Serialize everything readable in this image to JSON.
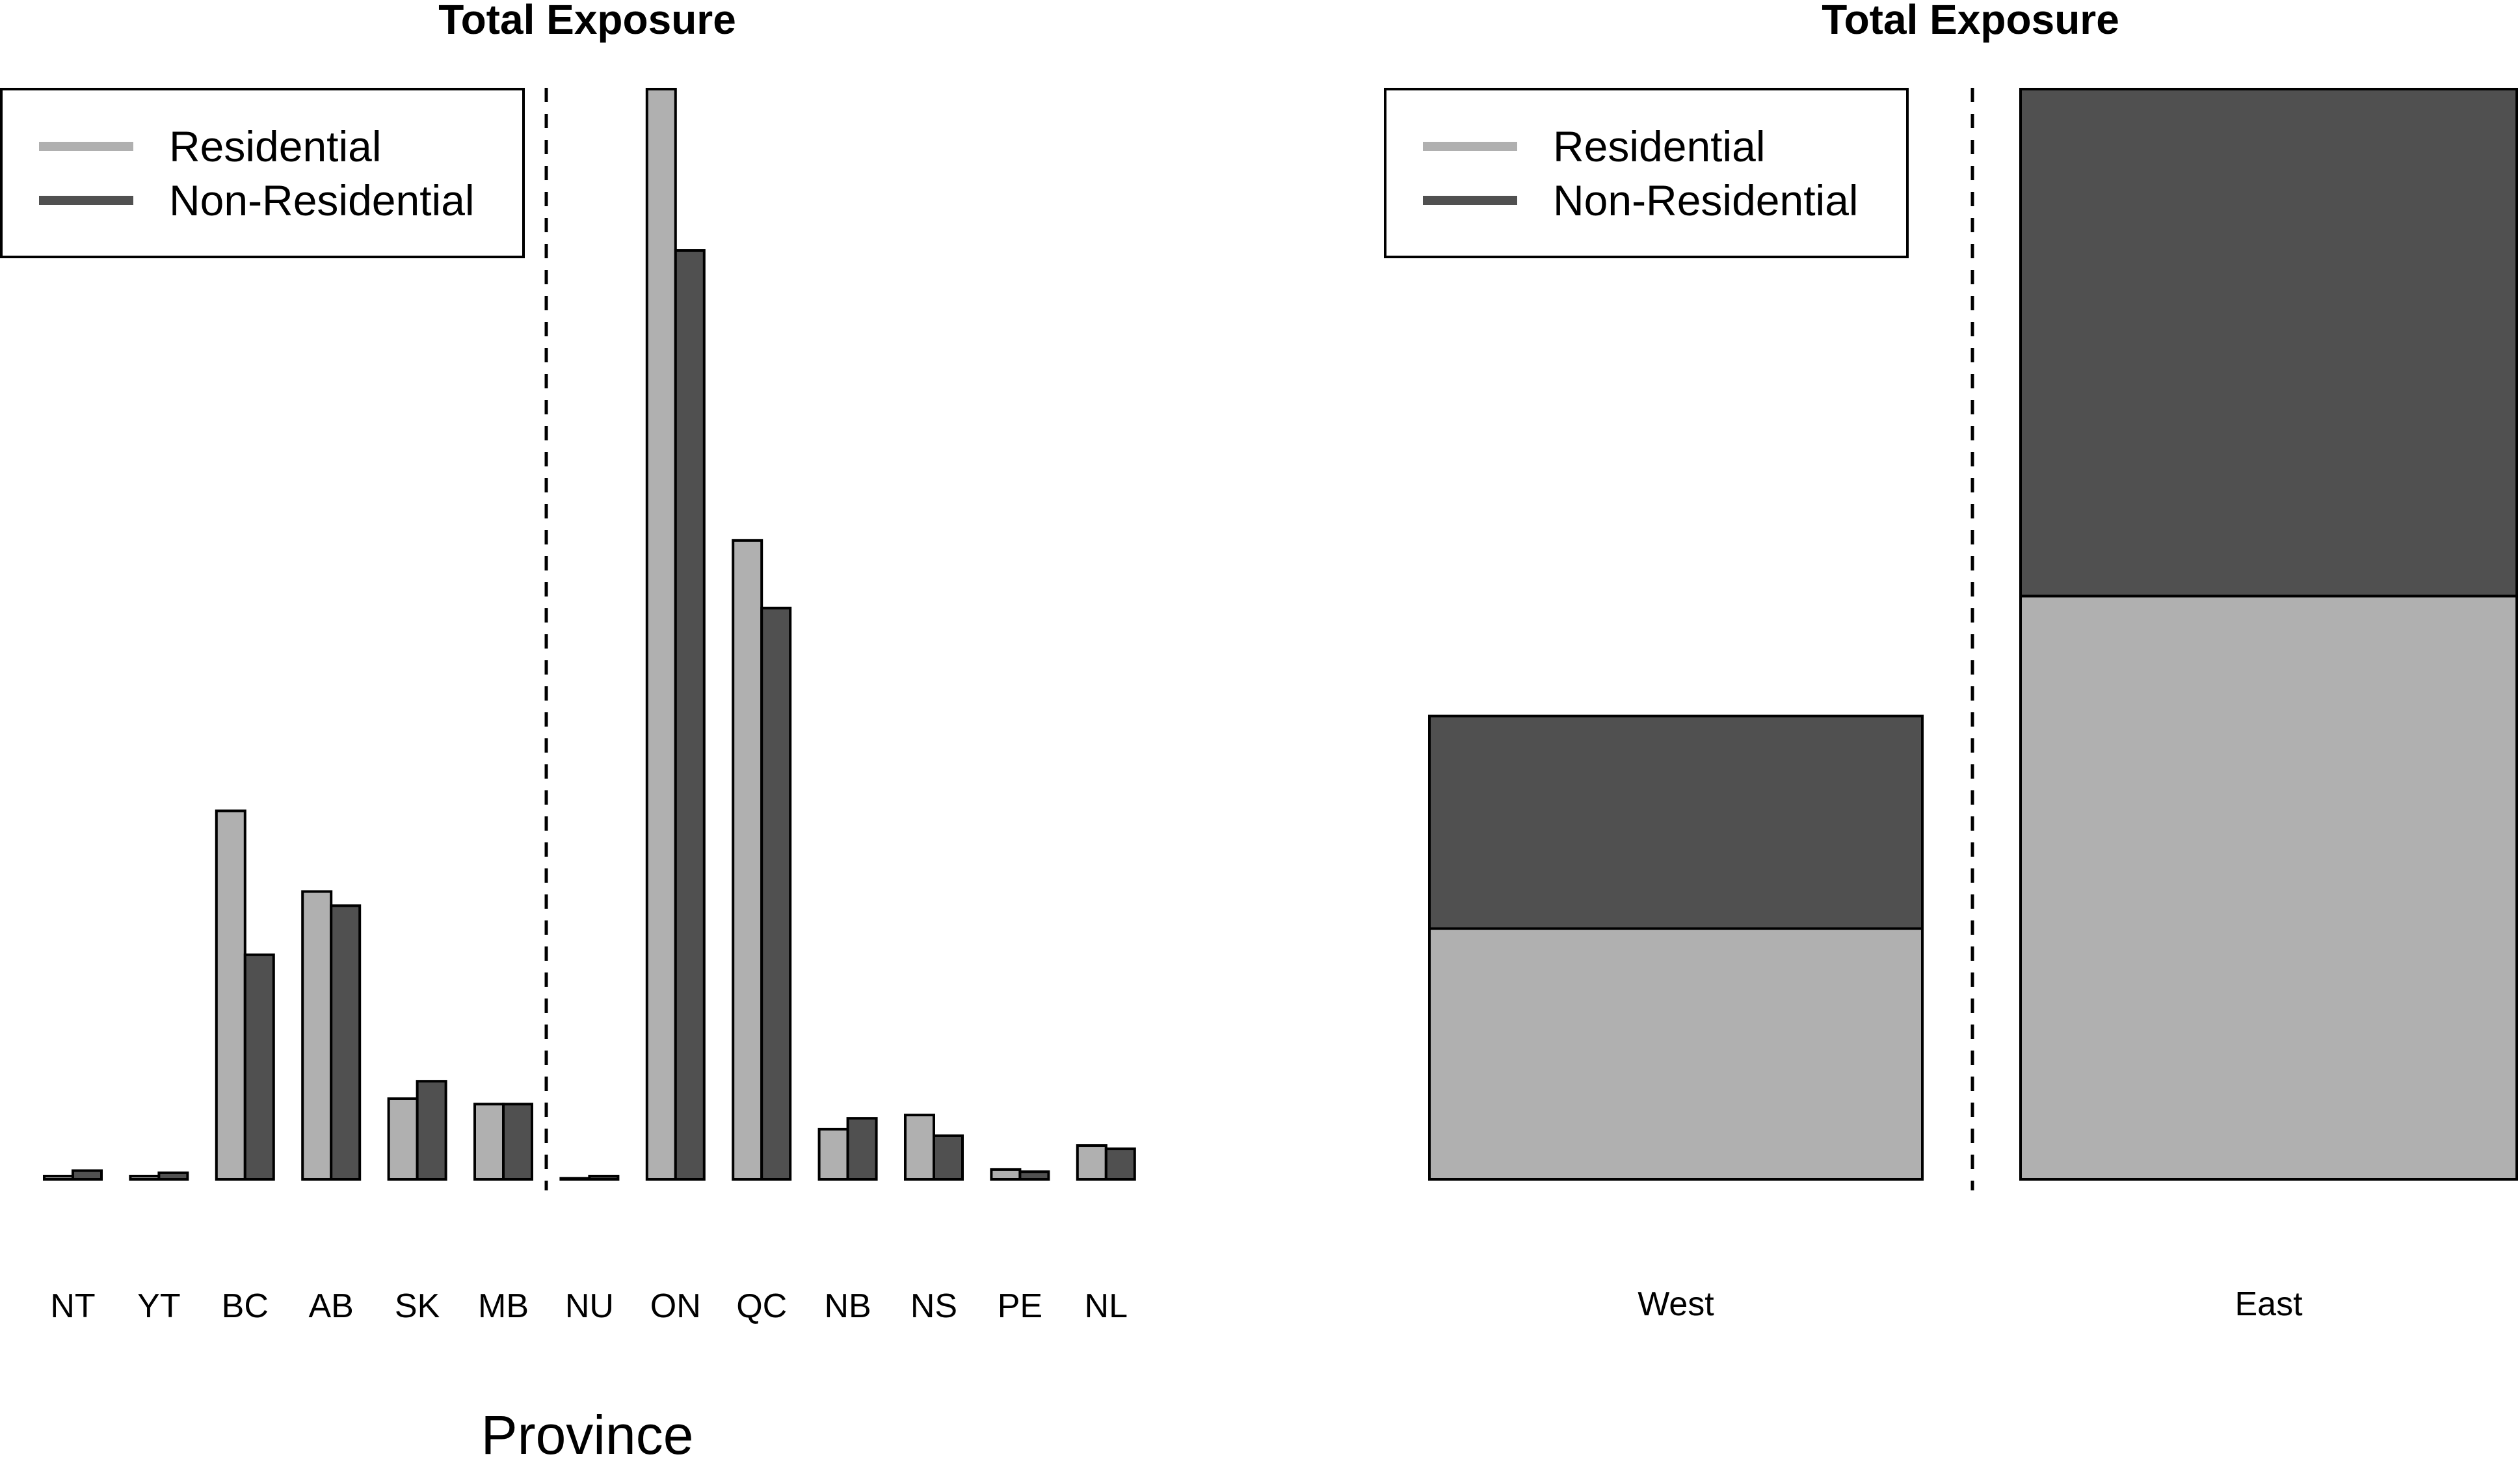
{
  "chart_data": [
    {
      "type": "bar",
      "title": "Total Exposure",
      "xlabel": "Province",
      "ylabel": "",
      "ylim": [
        0,
        100
      ],
      "categories": [
        "NT",
        "YT",
        "BC",
        "AB",
        "SK",
        "MB",
        "NU",
        "ON",
        "QC",
        "NB",
        "NS",
        "PE",
        "NL"
      ],
      "series": [
        {
          "name": "Residential",
          "color": "#b0b0b0",
          "values": [
            0.3,
            0.3,
            33.8,
            26.4,
            7.4,
            6.9,
            0.1,
            100.0,
            58.6,
            4.6,
            5.9,
            0.9,
            3.1
          ]
        },
        {
          "name": "Non-Residential",
          "color": "#505050",
          "values": [
            0.8,
            0.6,
            20.6,
            25.1,
            9.0,
            6.9,
            0.3,
            85.2,
            52.4,
            5.6,
            4.0,
            0.7,
            2.8
          ]
        }
      ],
      "divider_after": "MB",
      "legend_position": "top-left",
      "grid": false
    },
    {
      "type": "bar",
      "stacked": true,
      "title": "Total Exposure",
      "xlabel": "",
      "ylabel": "",
      "ylim": [
        0,
        100
      ],
      "categories": [
        "West",
        "East"
      ],
      "series": [
        {
          "name": "Residential",
          "color": "#b0b0b0",
          "values": [
            23,
            53.5
          ]
        },
        {
          "name": "Non-Residential",
          "color": "#505050",
          "values": [
            19.5,
            46.5
          ]
        }
      ],
      "divider_after": "West",
      "legend_position": "top-left",
      "grid": false
    }
  ]
}
